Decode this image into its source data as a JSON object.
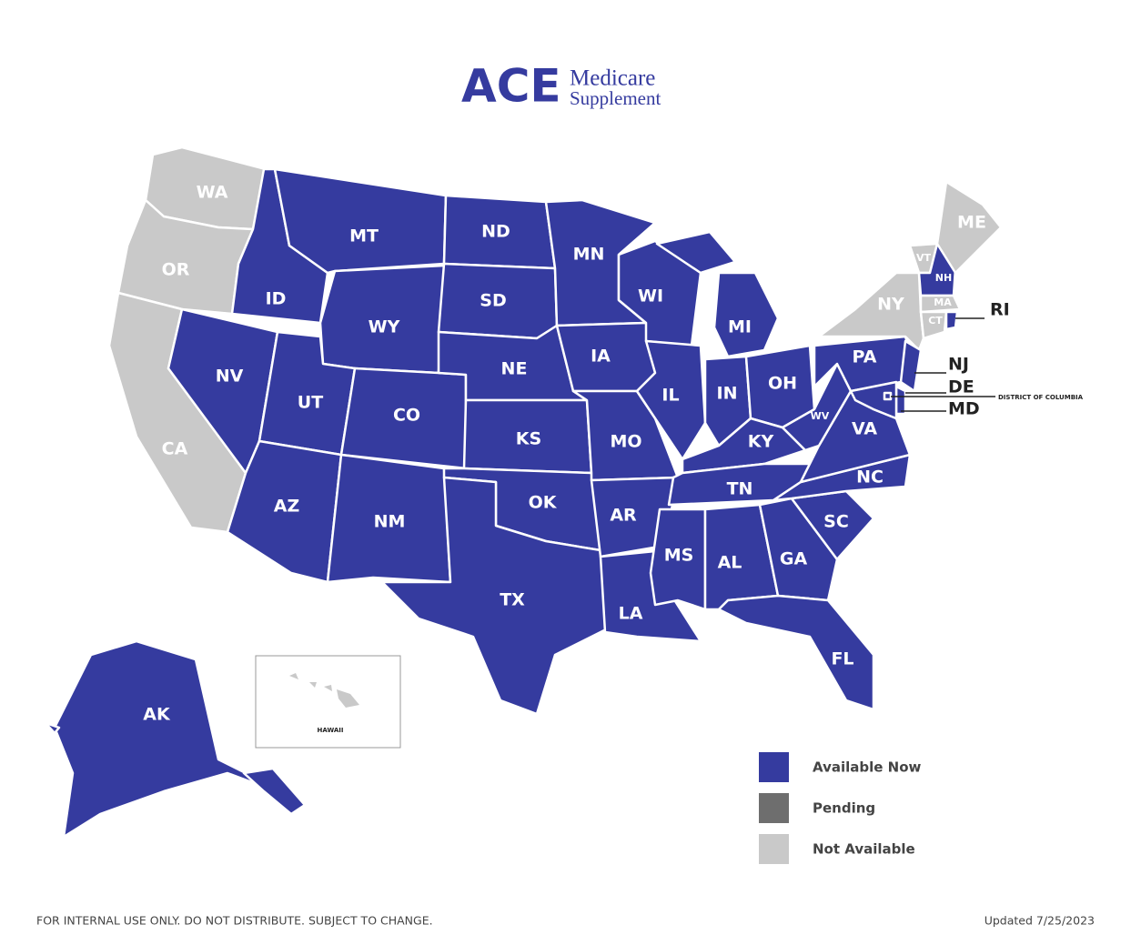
{
  "logo": {
    "brand": "ACE",
    "line1": "Medicare",
    "line2": "Supplement"
  },
  "legend": [
    {
      "label": "Available Now",
      "color": "#353b9f"
    },
    {
      "label": "Pending",
      "color": "#6e6e6e"
    },
    {
      "label": "Not Available",
      "color": "#c9c9c9"
    }
  ],
  "states": [
    {
      "label": "WA",
      "status": 2
    },
    {
      "label": "OR",
      "status": 2
    },
    {
      "label": "CA",
      "status": 2
    },
    {
      "label": "ID",
      "status": 0
    },
    {
      "label": "MT",
      "status": 0
    },
    {
      "label": "WY",
      "status": 0
    },
    {
      "label": "NV",
      "status": 0
    },
    {
      "label": "UT",
      "status": 0
    },
    {
      "label": "AZ",
      "status": 0
    },
    {
      "label": "CO",
      "status": 0
    },
    {
      "label": "NM",
      "status": 0
    },
    {
      "label": "ND",
      "status": 0
    },
    {
      "label": "SD",
      "status": 0
    },
    {
      "label": "NE",
      "status": 0
    },
    {
      "label": "KS",
      "status": 0
    },
    {
      "label": "OK",
      "status": 0
    },
    {
      "label": "TX",
      "status": 0
    },
    {
      "label": "MN",
      "status": 0
    },
    {
      "label": "IA",
      "status": 0
    },
    {
      "label": "MO",
      "status": 0
    },
    {
      "label": "AR",
      "status": 0
    },
    {
      "label": "LA",
      "status": 0
    },
    {
      "label": "WI",
      "status": 0
    },
    {
      "label": "IL",
      "status": 0
    },
    {
      "label": "MI",
      "status": 0
    },
    {
      "label": "IN",
      "status": 0
    },
    {
      "label": "OH",
      "status": 0
    },
    {
      "label": "KY",
      "status": 0
    },
    {
      "label": "TN",
      "status": 0
    },
    {
      "label": "MS",
      "status": 0
    },
    {
      "label": "AL",
      "status": 0
    },
    {
      "label": "GA",
      "status": 0
    },
    {
      "label": "FL",
      "status": 0
    },
    {
      "label": "SC",
      "status": 0
    },
    {
      "label": "NC",
      "status": 0
    },
    {
      "label": "VA",
      "status": 0
    },
    {
      "label": "WV",
      "status": 0
    },
    {
      "label": "PA",
      "status": 0
    },
    {
      "label": "NY",
      "status": 2
    },
    {
      "label": "VT",
      "status": 2
    },
    {
      "label": "NH",
      "status": 0
    },
    {
      "label": "ME",
      "status": 2
    },
    {
      "label": "MA",
      "status": 2
    },
    {
      "label": "CT",
      "status": 2
    },
    {
      "label": "RI",
      "status": 0
    },
    {
      "label": "NJ",
      "status": 0
    },
    {
      "label": "DE",
      "status": 0
    },
    {
      "label": "MD",
      "status": 0
    },
    {
      "label": "DISTRICT OF COLUMBIA",
      "status": 0
    },
    {
      "label": "AK",
      "status": 0
    },
    {
      "label": "HAWAII",
      "status": 2
    }
  ],
  "footer": {
    "notice": "FOR INTERNAL USE ONLY. DO NOT DISTRIBUTE. SUBJECT TO CHANGE.",
    "updated": "Updated 7/25/2023"
  }
}
